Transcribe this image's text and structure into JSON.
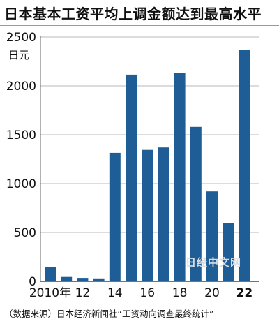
{
  "title": "日本基本工资平均上调金额达到最高水平",
  "watermark": "日经中文网",
  "source": "（数据来源）日本经济新闻社“工资动向调查最终统计”",
  "colors": {
    "bar": "#1f5d96",
    "gridline": "#b8b8b8",
    "text": "#111111"
  },
  "chart_data": {
    "type": "bar",
    "title": "日本基本工资平均上调金额达到最高水平",
    "unit_label": "日元",
    "ylim": [
      0,
      2500
    ],
    "yticks": [
      0,
      500,
      1000,
      1500,
      2000,
      2500
    ],
    "grid": true,
    "categories": [
      "2010",
      "2011",
      "2012",
      "2013",
      "2014",
      "2015",
      "2016",
      "2017",
      "2018",
      "2019",
      "2020",
      "2021",
      "2022"
    ],
    "x_tick_labels": [
      "2010年",
      "",
      "12",
      "",
      "14",
      "",
      "16",
      "",
      "18",
      "",
      "20",
      "",
      "22"
    ],
    "highlight_last_tick": true,
    "values": [
      150,
      45,
      35,
      30,
      1315,
      2115,
      1345,
      1370,
      2130,
      1580,
      920,
      600,
      2365
    ]
  }
}
